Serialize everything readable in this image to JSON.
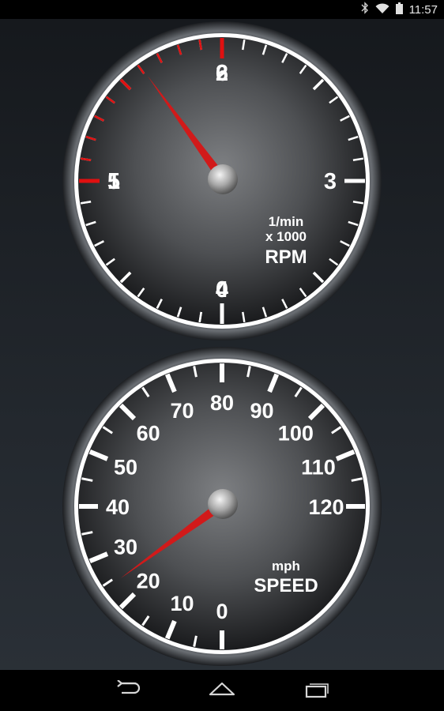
{
  "status_bar": {
    "time": "11:57",
    "icons": [
      "bluetooth-icon",
      "wifi-icon",
      "battery-icon"
    ]
  },
  "tachometer": {
    "scale_labels": [
      "0",
      "1",
      "2",
      "3",
      "4",
      "5",
      "6"
    ],
    "unit_line1": "1/min",
    "unit_line2": "x 1000",
    "unit_name": "RPM",
    "current_value": 1.6,
    "min": 0,
    "max": 6,
    "redline_start": 5,
    "needle_color": "#d11a1a",
    "redline_color": "#e01010"
  },
  "speedometer": {
    "scale_labels": [
      "0",
      "10",
      "20",
      "30",
      "40",
      "50",
      "60",
      "70",
      "80",
      "90",
      "100",
      "110",
      "120"
    ],
    "unit_line1": "mph",
    "unit_name": "SPEED",
    "current_value": 24,
    "min": 0,
    "max": 120,
    "needle_color": "#d11a1a"
  },
  "nav_bar": {
    "buttons": [
      "back-icon",
      "home-icon",
      "recent-apps-icon"
    ]
  }
}
